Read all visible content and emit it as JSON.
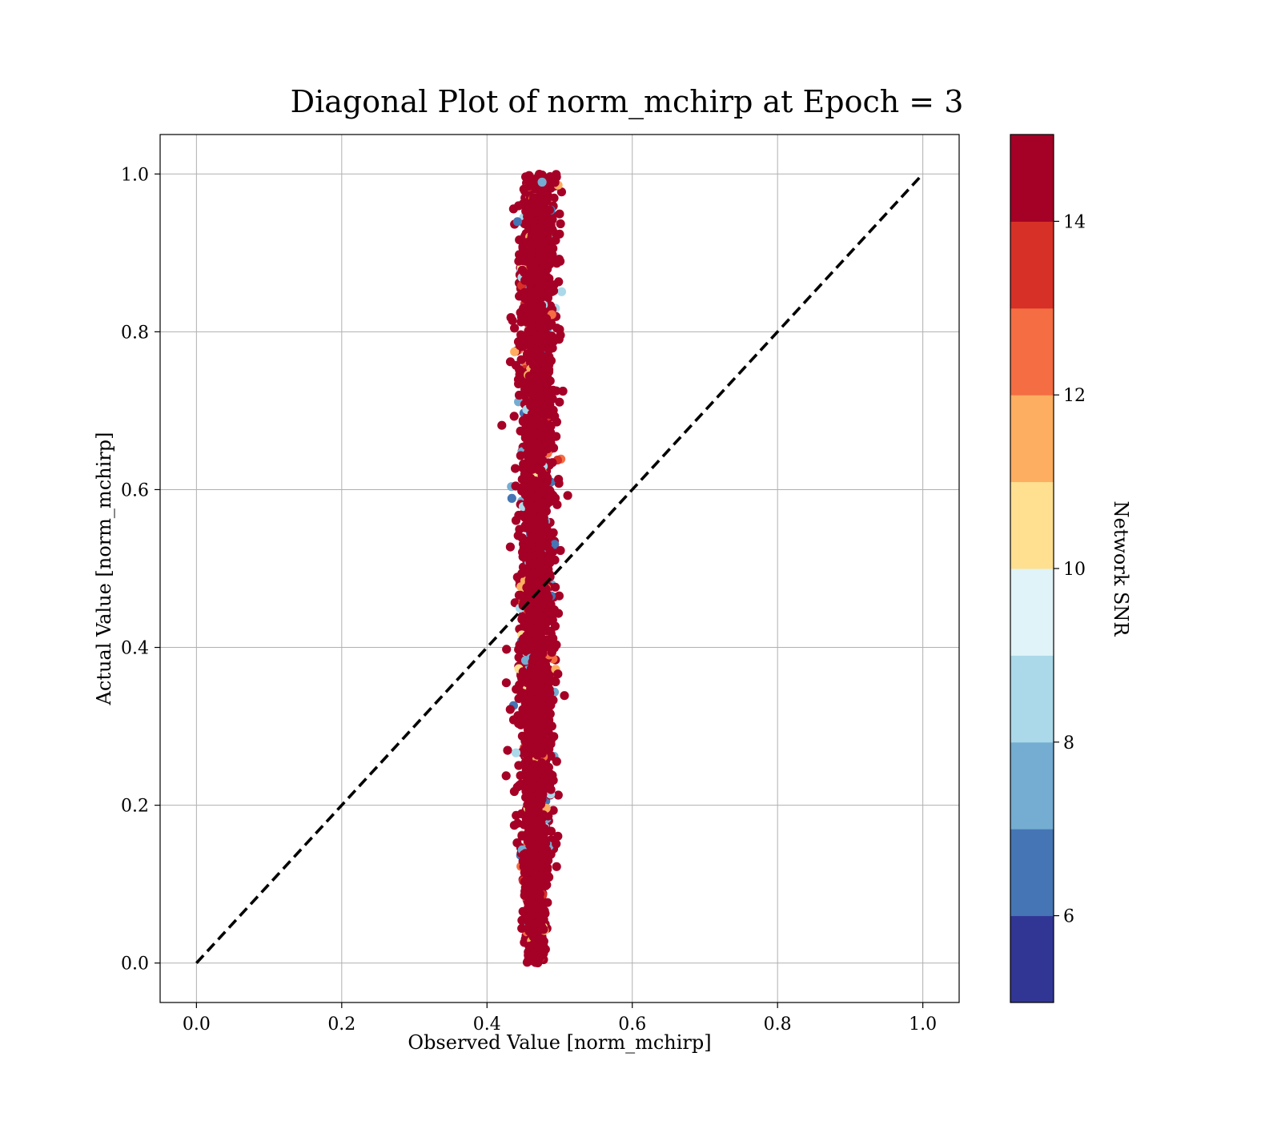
{
  "chart_data": {
    "type": "scatter",
    "title": "Diagonal Plot of norm_mchirp at Epoch = 3",
    "xlabel": "Observed Value [norm_mchirp]",
    "ylabel": "Actual Value [norm_mchirp]",
    "xlim": [
      -0.05,
      1.05
    ],
    "ylim": [
      -0.05,
      1.05
    ],
    "x_ticks": [
      "0.0",
      "0.2",
      "0.4",
      "0.6",
      "0.8",
      "1.0"
    ],
    "y_ticks": [
      "0.0",
      "0.2",
      "0.4",
      "0.6",
      "0.8",
      "1.0"
    ],
    "x_tick_values": [
      0.0,
      0.2,
      0.4,
      0.6,
      0.8,
      1.0
    ],
    "y_tick_values": [
      0.0,
      0.2,
      0.4,
      0.6,
      0.8,
      1.0
    ],
    "grid": true,
    "reference_line": {
      "from": [
        0,
        0
      ],
      "to": [
        1,
        1
      ],
      "style": "dashed",
      "color": "#000000"
    },
    "scatter_cloud": {
      "x_center": 0.468,
      "x_spread": 0.012,
      "y_range": [
        0.0,
        1.0
      ],
      "dominant_color": "#a50026"
    },
    "colorbar": {
      "label": "Network SNR",
      "range": [
        5,
        15
      ],
      "tick_labels": [
        "6",
        "8",
        "10",
        "12",
        "14"
      ],
      "tick_values": [
        6,
        8,
        10,
        12,
        14
      ],
      "colors": [
        "#313695",
        "#4575b4",
        "#74add1",
        "#abd9e9",
        "#e0f3f8",
        "#fee090",
        "#fdae61",
        "#f46d43",
        "#d73027",
        "#a50026"
      ]
    }
  }
}
